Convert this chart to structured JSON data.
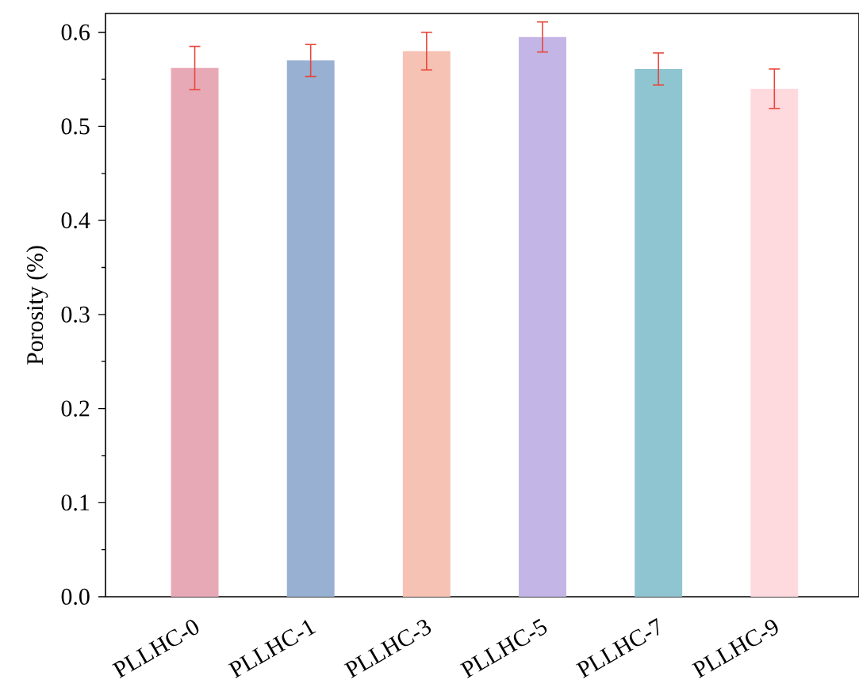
{
  "chart_data": {
    "type": "bar",
    "ylabel": "Porosity (%)",
    "categories": [
      "PLLHC-0",
      "PLLHC-1",
      "PLLHC-3",
      "PLLHC-5",
      "PLLHC-7",
      "PLLHC-9"
    ],
    "values": [
      0.562,
      0.57,
      0.58,
      0.595,
      0.561,
      0.54
    ],
    "errors": [
      0.023,
      0.017,
      0.02,
      0.016,
      0.017,
      0.021
    ],
    "colors": [
      "#e8a9b6",
      "#98b0d2",
      "#f6c2b4",
      "#c3b5e5",
      "#8fc5d0",
      "#fed9de"
    ],
    "ylim": [
      0,
      0.62
    ],
    "yticks": [
      {
        "value": 0,
        "label": "0.0"
      },
      0.1,
      0.2,
      0.3,
      0.4,
      0.5,
      0.6
    ],
    "grid": false
  }
}
